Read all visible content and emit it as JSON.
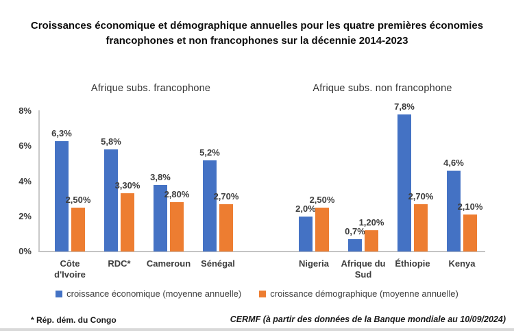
{
  "title": {
    "line1": "Croissances économique et démographique annuelles pour les quatre premières économies",
    "line2": "francophones et non francophones sur la décennie 2014-2023"
  },
  "legend": [
    {
      "label": "croissance économique (moyenne annuelle)",
      "color": "#4472C4"
    },
    {
      "label": "croissance démographique (moyenne annuelle)",
      "color": "#ED7D31"
    }
  ],
  "footnote": "* Rép. dém. du Congo",
  "source": "CERMF (à partir des données de la Banque mondiale au 10/09/2024)",
  "chart_data": {
    "type": "bar",
    "title": "Croissances économique et démographique annuelles pour les quatre premières économies francophones et non francophones sur la décennie 2014-2023",
    "xlabel": "",
    "ylabel": "",
    "ylim": [
      0,
      8
    ],
    "grid": false,
    "legend_position": "bottom",
    "yticks": [
      {
        "value": 0,
        "label": "0%"
      },
      {
        "value": 2,
        "label": "2%"
      },
      {
        "value": 4,
        "label": "4%"
      },
      {
        "value": 6,
        "label": "6%"
      },
      {
        "value": 8,
        "label": "8%"
      }
    ],
    "groups": [
      {
        "title": "Afrique subs. francophone",
        "categories": [
          "Côte d'Ivoire",
          "RDC*",
          "Cameroun",
          "Sénégal"
        ],
        "series": [
          {
            "name": "croissance économique (moyenne annuelle)",
            "color": "#4472C4",
            "values": [
              6.3,
              5.8,
              3.8,
              5.2
            ],
            "labels": [
              "6,3%",
              "5,8%",
              "3,8%",
              "5,2%"
            ]
          },
          {
            "name": "croissance démographique (moyenne annuelle)",
            "color": "#ED7D31",
            "values": [
              2.5,
              3.3,
              2.8,
              2.7
            ],
            "labels": [
              "2,50%",
              "3,30%",
              "2,80%",
              "2,70%"
            ]
          }
        ]
      },
      {
        "title": "Afrique subs. non francophone",
        "categories": [
          "Nigeria",
          "Afrique du Sud",
          "Éthiopie",
          "Kenya"
        ],
        "series": [
          {
            "name": "croissance économique (moyenne annuelle)",
            "color": "#4472C4",
            "values": [
              2.0,
              0.7,
              7.8,
              4.6
            ],
            "labels": [
              "2,0%",
              "0,7%",
              "7,8%",
              "4,6%"
            ]
          },
          {
            "name": "croissance démographique (moyenne annuelle)",
            "color": "#ED7D31",
            "values": [
              2.5,
              1.2,
              2.7,
              2.1
            ],
            "labels": [
              "2,50%",
              "1,20%",
              "2,70%",
              "2,10%"
            ]
          }
        ]
      }
    ]
  }
}
